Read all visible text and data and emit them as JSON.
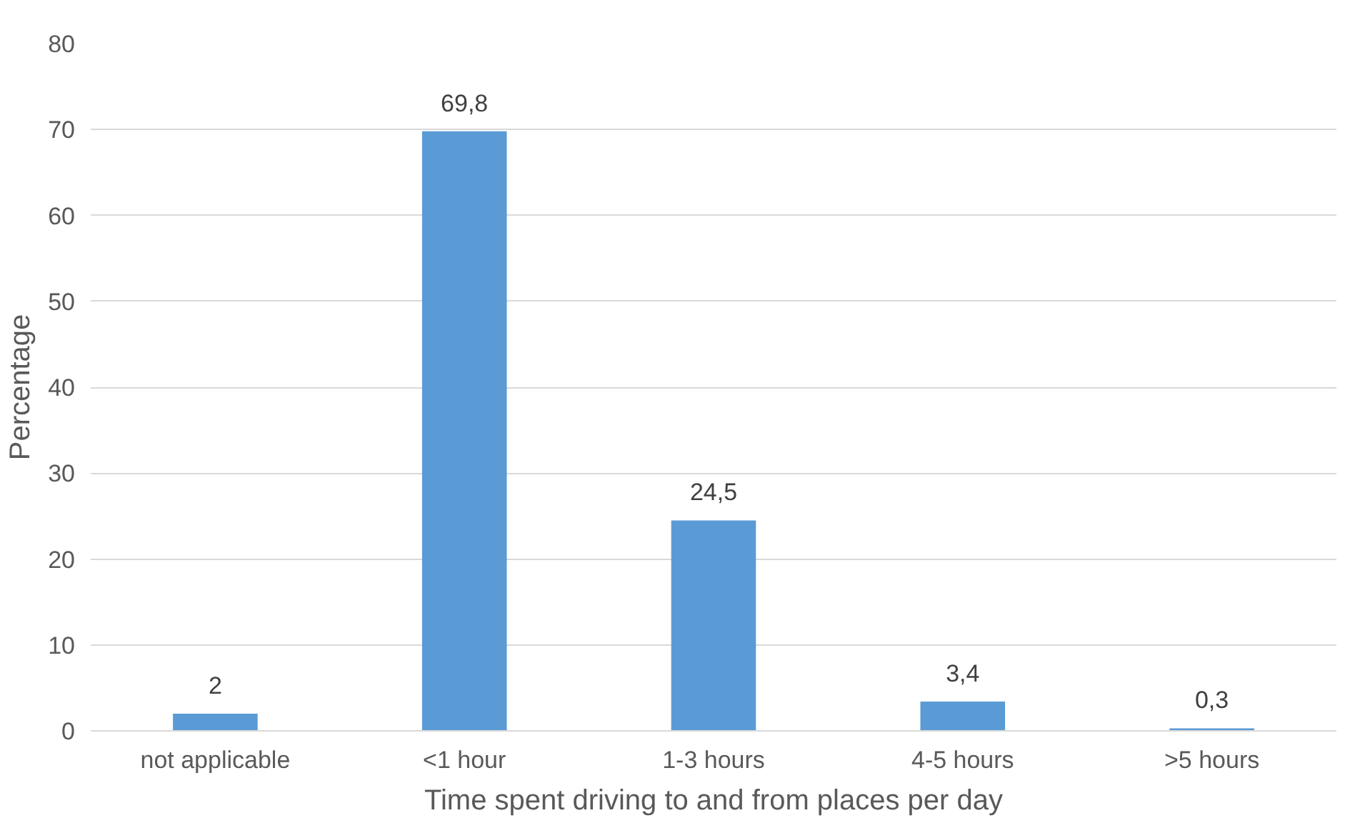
{
  "chart_data": {
    "type": "bar",
    "xlabel": "Time spent driving to and from places per day",
    "ylabel": "Percentage",
    "categories": [
      "not applicable",
      "<1 hour",
      "1-3 hours",
      "4-5 hours",
      ">5 hours"
    ],
    "values": [
      2,
      69.8,
      24.5,
      3.4,
      0.3
    ],
    "value_labels": [
      "2",
      "69,8",
      "24,5",
      "3,4",
      "0,3"
    ],
    "color": "#5b9bd5",
    "ylim": [
      0,
      80
    ],
    "yticks": [
      0,
      10,
      20,
      30,
      40,
      50,
      60,
      70,
      80
    ],
    "grid": "y"
  }
}
